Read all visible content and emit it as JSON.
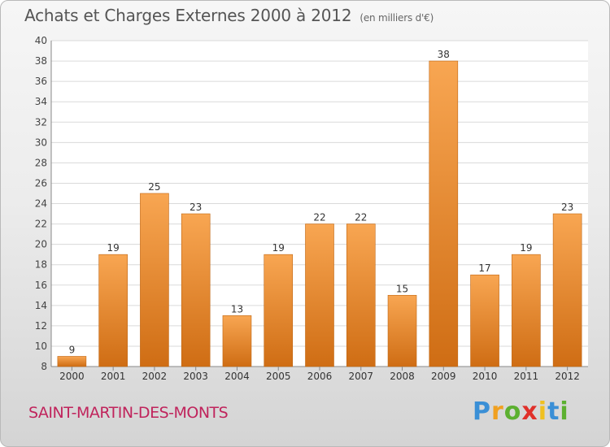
{
  "chart_data": {
    "type": "bar",
    "title": "Achats et Charges Externes 2000 à 2012",
    "unit_label": "(en milliers d'€)",
    "categories": [
      "2000",
      "2001",
      "2002",
      "2003",
      "2004",
      "2005",
      "2006",
      "2007",
      "2008",
      "2009",
      "2010",
      "2011",
      "2012"
    ],
    "values": [
      9,
      19,
      25,
      23,
      13,
      19,
      22,
      22,
      15,
      38,
      17,
      19,
      23
    ],
    "ylim": [
      8,
      40
    ],
    "yticks": [
      8,
      10,
      12,
      14,
      16,
      18,
      20,
      22,
      24,
      26,
      28,
      30,
      32,
      34,
      36,
      38,
      40
    ],
    "grid": true,
    "bar_color": "#f08a2c"
  },
  "commune_name": "SAINT-MARTIN-DES-MONTS",
  "brand": {
    "letters": [
      "P",
      "r",
      "o",
      "x",
      "i",
      "t",
      "i"
    ],
    "colors": [
      "#3a8fd6",
      "#f0a020",
      "#5cb030",
      "#e0302a",
      "#f0c020",
      "#3a8fd6",
      "#5cb030"
    ]
  }
}
